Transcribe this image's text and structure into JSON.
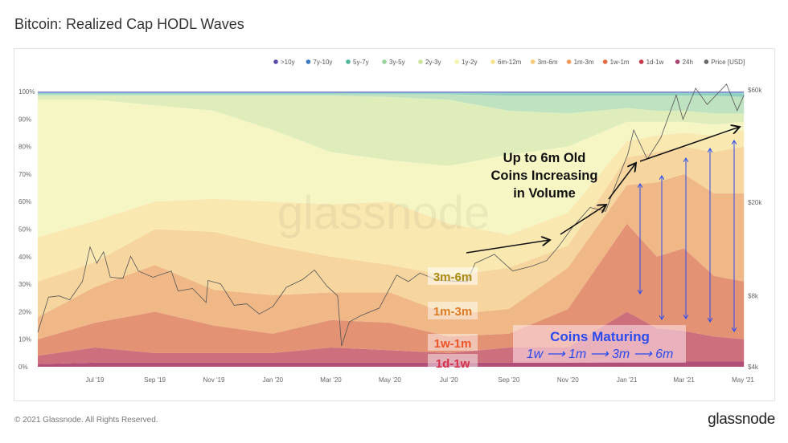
{
  "header": {
    "title": "Bitcoin: Realized Cap HODL Waves"
  },
  "footer": {
    "copyright": "© 2021 Glassnode. All Rights Reserved.",
    "logo": "glassnode"
  },
  "watermark": "glassnode",
  "chart_data": {
    "type": "area",
    "stacked": true,
    "title": "Bitcoin: Realized Cap HODL Waves",
    "dates": [
      "2019-05-03",
      "2019-07-01",
      "2019-09-01",
      "2019-11-01",
      "2020-01-01",
      "2020-03-01",
      "2020-05-01",
      "2020-07-01",
      "2020-09-01",
      "2020-11-01",
      "2021-01-01",
      "2021-02-01",
      "2021-03-01",
      "2021-04-01",
      "2021-05-02"
    ],
    "y_left": {
      "range": [
        0,
        100
      ],
      "unit": "%",
      "ticks": [
        "0%",
        "10%",
        "20%",
        "30%",
        "40%",
        "50%",
        "60%",
        "70%",
        "80%",
        "90%",
        "100%"
      ]
    },
    "y_right": {
      "scale": "log",
      "range": [
        4000,
        60000
      ],
      "ticks": [
        {
          "label": "$4k",
          "value": 4000
        },
        {
          "label": "$8k",
          "value": 8000
        },
        {
          "label": "$20k",
          "value": 20000
        },
        {
          "label": "$60k",
          "value": 60000
        }
      ]
    },
    "x_ticks": [
      {
        "label": "Jul '19",
        "date": "2019-07-01"
      },
      {
        "label": "Sep '19",
        "date": "2019-09-01"
      },
      {
        "label": "Nov '19",
        "date": "2019-11-01"
      },
      {
        "label": "Jan '20",
        "date": "2020-01-01"
      },
      {
        "label": "Mar '20",
        "date": "2020-03-01"
      },
      {
        "label": "May '20",
        "date": "2020-05-01"
      },
      {
        "label": "Jul '20",
        "date": "2020-07-01"
      },
      {
        "label": "Sep '20",
        "date": "2020-09-01"
      },
      {
        "label": "Nov '20",
        "date": "2020-11-01"
      },
      {
        "label": "Jan '21",
        "date": "2021-01-01"
      },
      {
        "label": "Mar '21",
        "date": "2021-03-01"
      },
      {
        "label": "May '21",
        "date": "2021-05-01"
      }
    ],
    "grid": false,
    "legend_position": "top-right",
    "series": [
      {
        "name": "24h",
        "color": "#a8426e",
        "fill": "#b24f78",
        "values": [
          1,
          1.5,
          1.5,
          1.5,
          1.5,
          1.5,
          1.5,
          1.5,
          1.5,
          1.5,
          2,
          2,
          2,
          2,
          2
        ]
      },
      {
        "name": "1d-1w",
        "color": "#c9374a",
        "fill": "#cd6f7c",
        "values": [
          3,
          5.5,
          3.5,
          3.5,
          3.5,
          5.5,
          4.5,
          3.5,
          5.5,
          5.5,
          18,
          12,
          11,
          9,
          8
        ]
      },
      {
        "name": "1w-1m",
        "color": "#e8683f",
        "fill": "#e49274",
        "values": [
          6,
          9,
          15,
          10,
          7,
          10,
          10,
          6,
          5,
          14,
          32,
          26,
          30,
          22,
          21
        ]
      },
      {
        "name": "1m-3m",
        "color": "#f29a5a",
        "fill": "#f0b887",
        "values": [
          8,
          13,
          17,
          13,
          14,
          10,
          11,
          8,
          9,
          15,
          14,
          27,
          27,
          30,
          32
        ]
      },
      {
        "name": "3m-6m",
        "color": "#f7c978",
        "fill": "#f6d69e",
        "values": [
          13,
          9,
          13,
          21,
          18,
          13,
          10,
          14,
          15,
          8,
          10,
          11,
          10,
          15,
          17
        ]
      },
      {
        "name": "6m-12m",
        "color": "#f9e38c",
        "fill": "#f9e8b0",
        "values": [
          16,
          15,
          10,
          12,
          16,
          19,
          23,
          19,
          12,
          12,
          6,
          6,
          5,
          6,
          6
        ]
      },
      {
        "name": "1y-2y",
        "color": "#f4f3a8",
        "fill": "#f6f6c5",
        "values": [
          50,
          44,
          35,
          32,
          26,
          19,
          15,
          21,
          29,
          24,
          7,
          5,
          4,
          4,
          3
        ]
      },
      {
        "name": "2y-3y",
        "color": "#c8e59a",
        "fill": "#dfedbb",
        "values": [
          1.5,
          1.5,
          3.5,
          5.5,
          12.5,
          20.5,
          23,
          24,
          16,
          12,
          5,
          4,
          4,
          4,
          3
        ]
      },
      {
        "name": "3y-5y",
        "color": "#97d49b",
        "fill": "#bfe2c0",
        "values": [
          0.5,
          0.5,
          0.5,
          0.5,
          0.5,
          0.5,
          1,
          2,
          5.5,
          6.5,
          4.5,
          5.5,
          5.5,
          6.5,
          6
        ]
      },
      {
        "name": "5y-7y",
        "color": "#4fb59c",
        "fill": "#8fcfc0",
        "values": [
          0.4,
          0.4,
          0.4,
          0.4,
          0.4,
          0.4,
          0.4,
          0.4,
          0.9,
          0.9,
          0.9,
          0.9,
          0.9,
          0.9,
          1.4
        ]
      },
      {
        "name": "7y-10y",
        "color": "#3b78c4",
        "fill": "#7fa9d8",
        "values": [
          0.3,
          0.3,
          0.3,
          0.3,
          0.3,
          0.3,
          0.3,
          0.3,
          0.3,
          0.3,
          0.3,
          0.3,
          0.3,
          0.3,
          0.3
        ]
      },
      {
        "name": ">10y",
        "color": "#5a4aa8",
        "fill": "#8e84c2",
        "values": [
          0.3,
          0.3,
          0.3,
          0.3,
          0.3,
          0.3,
          0.3,
          0.3,
          0.3,
          0.3,
          0.3,
          0.3,
          0.3,
          0.3,
          0.3
        ]
      }
    ],
    "price": {
      "name": "Price [USD]",
      "color": "#666666",
      "points": [
        [
          "2019-05-03",
          5600
        ],
        [
          "2019-05-14",
          7900
        ],
        [
          "2019-05-25",
          8000
        ],
        [
          "2019-06-05",
          7700
        ],
        [
          "2019-06-18",
          9200
        ],
        [
          "2019-06-26",
          12900
        ],
        [
          "2019-07-03",
          11000
        ],
        [
          "2019-07-10",
          12300
        ],
        [
          "2019-07-17",
          9600
        ],
        [
          "2019-07-30",
          9500
        ],
        [
          "2019-08-07",
          11800
        ],
        [
          "2019-08-15",
          10200
        ],
        [
          "2019-08-30",
          9600
        ],
        [
          "2019-09-18",
          10200
        ],
        [
          "2019-09-25",
          8400
        ],
        [
          "2019-10-10",
          8600
        ],
        [
          "2019-10-24",
          7500
        ],
        [
          "2019-10-26",
          9300
        ],
        [
          "2019-11-08",
          9000
        ],
        [
          "2019-11-22",
          7300
        ],
        [
          "2019-12-05",
          7400
        ],
        [
          "2019-12-18",
          6700
        ],
        [
          "2020-01-01",
          7200
        ],
        [
          "2020-01-15",
          8700
        ],
        [
          "2020-02-01",
          9400
        ],
        [
          "2020-02-13",
          10300
        ],
        [
          "2020-02-26",
          8800
        ],
        [
          "2020-03-08",
          8000
        ],
        [
          "2020-03-12",
          4900
        ],
        [
          "2020-03-20",
          6200
        ],
        [
          "2020-04-01",
          6600
        ],
        [
          "2020-04-20",
          7100
        ],
        [
          "2020-05-08",
          9800
        ],
        [
          "2020-05-20",
          9200
        ],
        [
          "2020-06-01",
          10000
        ],
        [
          "2020-06-20",
          9300
        ],
        [
          "2020-07-20",
          9200
        ],
        [
          "2020-07-28",
          11000
        ],
        [
          "2020-08-17",
          12000
        ],
        [
          "2020-09-05",
          10200
        ],
        [
          "2020-09-25",
          10700
        ],
        [
          "2020-10-10",
          11300
        ],
        [
          "2020-10-22",
          12900
        ],
        [
          "2020-11-05",
          15500
        ],
        [
          "2020-11-24",
          19000
        ],
        [
          "2020-12-10",
          18300
        ],
        [
          "2020-12-20",
          23500
        ],
        [
          "2021-01-02",
          32000
        ],
        [
          "2021-01-08",
          40500
        ],
        [
          "2021-01-22",
          30500
        ],
        [
          "2021-02-05",
          37500
        ],
        [
          "2021-02-21",
          57000
        ],
        [
          "2021-02-28",
          45000
        ],
        [
          "2021-03-13",
          61000
        ],
        [
          "2021-03-25",
          52000
        ],
        [
          "2021-04-14",
          63500
        ],
        [
          "2021-04-25",
          49000
        ],
        [
          "2021-05-02",
          57000
        ]
      ]
    },
    "annotations": {
      "main": [
        "Up to 6m Old",
        "Coins Increasing",
        "in Volume"
      ],
      "band_labels": [
        {
          "text": "3m-6m",
          "color": "#a88b12"
        },
        {
          "text": "1m-3m",
          "color": "#dd7a22"
        },
        {
          "text": "1w-1m",
          "color": "#ec5428"
        },
        {
          "text": "1d-1w",
          "color": "#d6314a"
        }
      ],
      "maturing_title": "Coins Maturing",
      "maturing_sequence": "1w ⟶ 1m ⟶ 3m ⟶ 6m",
      "maturing_color": "#2b4bf0"
    }
  }
}
